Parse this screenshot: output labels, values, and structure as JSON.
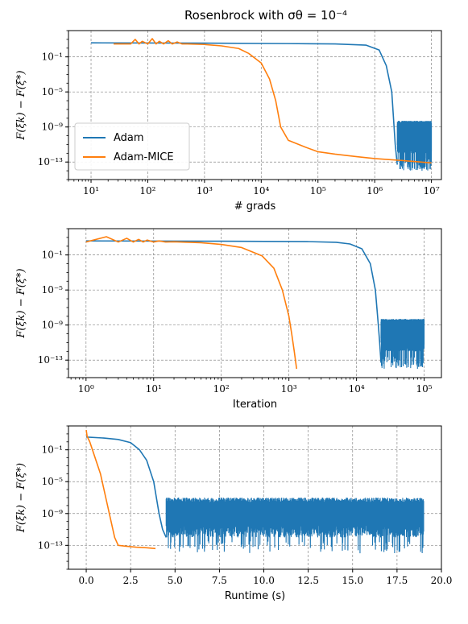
{
  "figure": {
    "title": "Rosenbrock with σθ = 10⁻⁴"
  },
  "colors": {
    "adam": "#1f77b4",
    "adam_mice": "#ff7f0e"
  },
  "chart_data": [
    {
      "type": "line",
      "title": "Rosenbrock with σθ = 10⁻⁴",
      "xlabel": "# grads",
      "ylabel": "F(ξk) − F(ξ*)",
      "xscale": "log",
      "yscale": "log",
      "xlim": [
        4,
        15000000
      ],
      "ylim": [
        1e-15,
        100
      ],
      "x_ticks": [
        {
          "v": 10,
          "label": "10¹"
        },
        {
          "v": 100,
          "label": "10²"
        },
        {
          "v": 1000,
          "label": "10³"
        },
        {
          "v": 10000,
          "label": "10⁴"
        },
        {
          "v": 100000,
          "label": "10⁵"
        },
        {
          "v": 1000000,
          "label": "10⁶"
        },
        {
          "v": 10000000,
          "label": "10⁷"
        }
      ],
      "y_ticks": [
        {
          "v": 0.1,
          "label": "10⁻¹"
        },
        {
          "v": 1e-05,
          "label": "10⁻⁵"
        },
        {
          "v": 1e-09,
          "label": "10⁻⁹"
        },
        {
          "v": 1e-13,
          "label": "10⁻¹³"
        }
      ],
      "grid": true,
      "legend": "lower-left",
      "series": [
        {
          "name": "Adam",
          "points": [
            [
              10,
              4
            ],
            [
              1000,
              3.7
            ],
            [
              30000,
              3.3
            ],
            [
              200000,
              3.0
            ],
            [
              700000,
              2.2
            ],
            [
              1200000,
              0.6
            ],
            [
              1600000,
              0.01
            ],
            [
              2000000,
              1e-05
            ],
            [
              2300000,
              1e-11
            ],
            [
              2500000,
              5e-14
            ]
          ],
          "noise": {
            "x_start": 2500000,
            "x_end": 10000000,
            "high": 5e-09,
            "low": 1e-14
          }
        },
        {
          "name": "Adam-MICE",
          "points": [
            [
              25,
              3
            ],
            [
              50,
              3
            ],
            [
              60,
              10
            ],
            [
              70,
              3
            ],
            [
              80,
              6
            ],
            [
              100,
              3
            ],
            [
              120,
              12
            ],
            [
              140,
              3
            ],
            [
              160,
              6
            ],
            [
              190,
              3
            ],
            [
              230,
              7
            ],
            [
              270,
              3
            ],
            [
              330,
              5
            ],
            [
              400,
              3
            ],
            [
              500,
              3
            ],
            [
              1000,
              2.6
            ],
            [
              2000,
              1.8
            ],
            [
              4000,
              0.9
            ],
            [
              6000,
              0.25
            ],
            [
              10000,
              0.02
            ],
            [
              14000,
              0.0003
            ],
            [
              18000,
              1e-06
            ],
            [
              22000,
              1e-09
            ],
            [
              30000,
              3e-11
            ],
            [
              60000,
              5e-12
            ],
            [
              100000,
              1.5e-12
            ],
            [
              200000,
              8e-13
            ],
            [
              500000,
              4e-13
            ],
            [
              1000000,
              2.5e-13
            ],
            [
              3000000,
              1.5e-13
            ],
            [
              10000000,
              8e-14
            ]
          ]
        }
      ]
    },
    {
      "type": "line",
      "title": "",
      "xlabel": "Iteration",
      "ylabel": "F(ξk) − F(ξ*)",
      "xscale": "log",
      "yscale": "log",
      "xlim": [
        0.55,
        180000
      ],
      "ylim": [
        1e-15,
        100
      ],
      "x_ticks": [
        {
          "v": 1,
          "label": "10⁰"
        },
        {
          "v": 10,
          "label": "10¹"
        },
        {
          "v": 100,
          "label": "10²"
        },
        {
          "v": 1000,
          "label": "10³"
        },
        {
          "v": 10000,
          "label": "10⁴"
        },
        {
          "v": 100000,
          "label": "10⁵"
        }
      ],
      "y_ticks": [
        {
          "v": 0.1,
          "label": "10⁻¹"
        },
        {
          "v": 1e-05,
          "label": "10⁻⁵"
        },
        {
          "v": 1e-09,
          "label": "10⁻⁹"
        },
        {
          "v": 1e-13,
          "label": "10⁻¹³"
        }
      ],
      "grid": true,
      "series": [
        {
          "name": "Adam",
          "points": [
            [
              1,
              4
            ],
            [
              100,
              3.7
            ],
            [
              2000,
              3.3
            ],
            [
              5000,
              2.8
            ],
            [
              8000,
              1.8
            ],
            [
              12000,
              0.5
            ],
            [
              16000,
              0.01
            ],
            [
              19000,
              1e-05
            ],
            [
              21000,
              1e-09
            ],
            [
              22000,
              1e-11
            ],
            [
              23000,
              5e-14
            ]
          ],
          "noise": {
            "x_start": 23000,
            "x_end": 100000,
            "high": 5e-09,
            "low": 1e-14
          }
        },
        {
          "name": "Adam-MICE",
          "points": [
            [
              1,
              3
            ],
            [
              2,
              12
            ],
            [
              3,
              3
            ],
            [
              4,
              8
            ],
            [
              5,
              3
            ],
            [
              6,
              6
            ],
            [
              7,
              3
            ],
            [
              8,
              5
            ],
            [
              10,
              3
            ],
            [
              12,
              4
            ],
            [
              15,
              3
            ],
            [
              20,
              3.2
            ],
            [
              50,
              2.5
            ],
            [
              100,
              1.6
            ],
            [
              200,
              0.7
            ],
            [
              400,
              0.08
            ],
            [
              600,
              0.003
            ],
            [
              800,
              1e-05
            ],
            [
              1000,
              1e-08
            ],
            [
              1100,
              1e-10
            ],
            [
              1200,
              1e-12
            ],
            [
              1300,
              1e-14
            ]
          ]
        }
      ]
    },
    {
      "type": "line",
      "title": "",
      "xlabel": "Runtime (s)",
      "ylabel": "F(ξk) − F(ξ*)",
      "xscale": "linear",
      "yscale": "log",
      "xlim": [
        -1,
        20
      ],
      "ylim": [
        1e-16,
        100
      ],
      "x_ticks": [
        {
          "v": 0,
          "label": "0.0"
        },
        {
          "v": 2.5,
          "label": "2.5"
        },
        {
          "v": 5,
          "label": "5.0"
        },
        {
          "v": 7.5,
          "label": "7.5"
        },
        {
          "v": 10,
          "label": "10.0"
        },
        {
          "v": 12.5,
          "label": "12.5"
        },
        {
          "v": 15,
          "label": "15.0"
        },
        {
          "v": 17.5,
          "label": "17.5"
        },
        {
          "v": 20,
          "label": "20.0"
        }
      ],
      "y_ticks": [
        {
          "v": 0.1,
          "label": "10⁻¹"
        },
        {
          "v": 1e-05,
          "label": "10⁻⁵"
        },
        {
          "v": 1e-09,
          "label": "10⁻⁹"
        },
        {
          "v": 1e-13,
          "label": "10⁻¹³"
        }
      ],
      "grid": true,
      "series": [
        {
          "name": "Adam",
          "points": [
            [
              0,
              4
            ],
            [
              1,
              3
            ],
            [
              1.8,
              2
            ],
            [
              2.5,
              0.8
            ],
            [
              3,
              0.1
            ],
            [
              3.4,
              0.005
            ],
            [
              3.8,
              1e-05
            ],
            [
              4.1,
              1e-09
            ],
            [
              4.3,
              1e-11
            ],
            [
              4.5,
              1e-12
            ]
          ],
          "noise": {
            "x_start": 4.5,
            "x_end": 19,
            "high": 1e-07,
            "low": 1e-14
          }
        },
        {
          "name": "Adam-MICE",
          "points": [
            [
              0,
              30
            ],
            [
              0.05,
              5
            ],
            [
              0.2,
              1
            ],
            [
              0.5,
              0.01
            ],
            [
              0.8,
              0.0001
            ],
            [
              1.1,
              1e-07
            ],
            [
              1.4,
              1e-10
            ],
            [
              1.6,
              1e-12
            ],
            [
              1.8,
              1e-13
            ],
            [
              2.2,
              8e-14
            ],
            [
              2.8,
              6e-14
            ],
            [
              3.4,
              5e-14
            ],
            [
              3.9,
              4e-14
            ]
          ]
        }
      ]
    }
  ]
}
